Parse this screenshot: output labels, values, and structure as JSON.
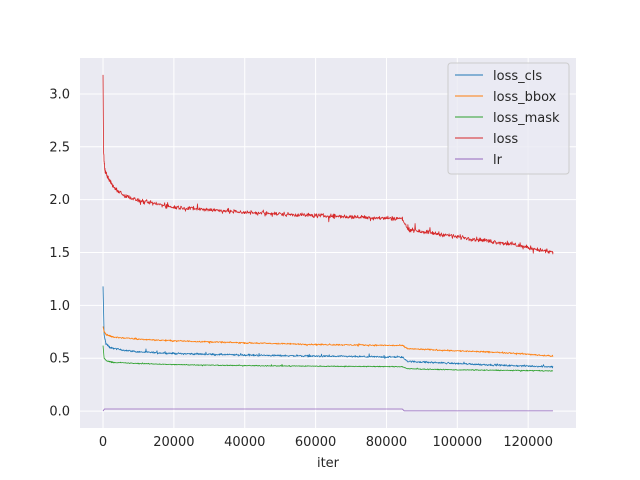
{
  "chart_data": {
    "type": "line",
    "title": "",
    "xlabel": "iter",
    "ylabel": "",
    "xlim": [
      -6500,
      133500
    ],
    "ylim": [
      -0.16,
      3.34
    ],
    "x_ticks": [
      0,
      20000,
      40000,
      60000,
      80000,
      100000,
      120000
    ],
    "x_tick_labels": [
      "0",
      "20000",
      "40000",
      "60000",
      "80000",
      "100000",
      "120000"
    ],
    "y_ticks": [
      0.0,
      0.5,
      1.0,
      1.5,
      2.0,
      2.5,
      3.0
    ],
    "y_tick_labels": [
      "0.0",
      "0.5",
      "1.0",
      "1.5",
      "2.0",
      "2.5",
      "3.0"
    ],
    "grid": true,
    "background": "#eaeaf2",
    "legend_position": "top-right",
    "series": [
      {
        "name": "loss_cls",
        "color": "#1f77b4",
        "noise": 0.012,
        "points": [
          [
            0,
            1.18
          ],
          [
            300,
            0.72
          ],
          [
            800,
            0.64
          ],
          [
            2000,
            0.6
          ],
          [
            5000,
            0.58
          ],
          [
            10000,
            0.56
          ],
          [
            20000,
            0.545
          ],
          [
            40000,
            0.53
          ],
          [
            60000,
            0.52
          ],
          [
            84500,
            0.51
          ],
          [
            86000,
            0.47
          ],
          [
            100000,
            0.45
          ],
          [
            115000,
            0.43
          ],
          [
            127000,
            0.42
          ]
        ]
      },
      {
        "name": "loss_bbox",
        "color": "#ff7f0e",
        "noise": 0.01,
        "points": [
          [
            0,
            0.8
          ],
          [
            300,
            0.75
          ],
          [
            1000,
            0.72
          ],
          [
            3000,
            0.7
          ],
          [
            10000,
            0.68
          ],
          [
            20000,
            0.665
          ],
          [
            40000,
            0.645
          ],
          [
            60000,
            0.63
          ],
          [
            84500,
            0.62
          ],
          [
            86000,
            0.59
          ],
          [
            100000,
            0.57
          ],
          [
            115000,
            0.55
          ],
          [
            127000,
            0.52
          ]
        ]
      },
      {
        "name": "loss_mask",
        "color": "#2ca02c",
        "noise": 0.006,
        "points": [
          [
            0,
            0.62
          ],
          [
            300,
            0.5
          ],
          [
            1000,
            0.475
          ],
          [
            3000,
            0.46
          ],
          [
            10000,
            0.45
          ],
          [
            20000,
            0.44
          ],
          [
            40000,
            0.43
          ],
          [
            60000,
            0.425
          ],
          [
            84500,
            0.42
          ],
          [
            86000,
            0.4
          ],
          [
            100000,
            0.39
          ],
          [
            115000,
            0.385
          ],
          [
            127000,
            0.38
          ]
        ]
      },
      {
        "name": "loss",
        "color": "#d62728",
        "noise": 0.03,
        "points": [
          [
            0,
            3.18
          ],
          [
            150,
            2.45
          ],
          [
            500,
            2.28
          ],
          [
            1500,
            2.2
          ],
          [
            3000,
            2.12
          ],
          [
            6000,
            2.04
          ],
          [
            10000,
            1.99
          ],
          [
            20000,
            1.93
          ],
          [
            40000,
            1.88
          ],
          [
            60000,
            1.85
          ],
          [
            84500,
            1.82
          ],
          [
            86000,
            1.72
          ],
          [
            100000,
            1.65
          ],
          [
            115000,
            1.58
          ],
          [
            127000,
            1.5
          ]
        ]
      },
      {
        "name": "lr",
        "color": "#9467bd",
        "noise": 0,
        "points": [
          [
            0,
            0.0
          ],
          [
            400,
            0.02
          ],
          [
            84500,
            0.02
          ],
          [
            85000,
            0.002
          ],
          [
            127000,
            0.002
          ]
        ]
      }
    ]
  }
}
